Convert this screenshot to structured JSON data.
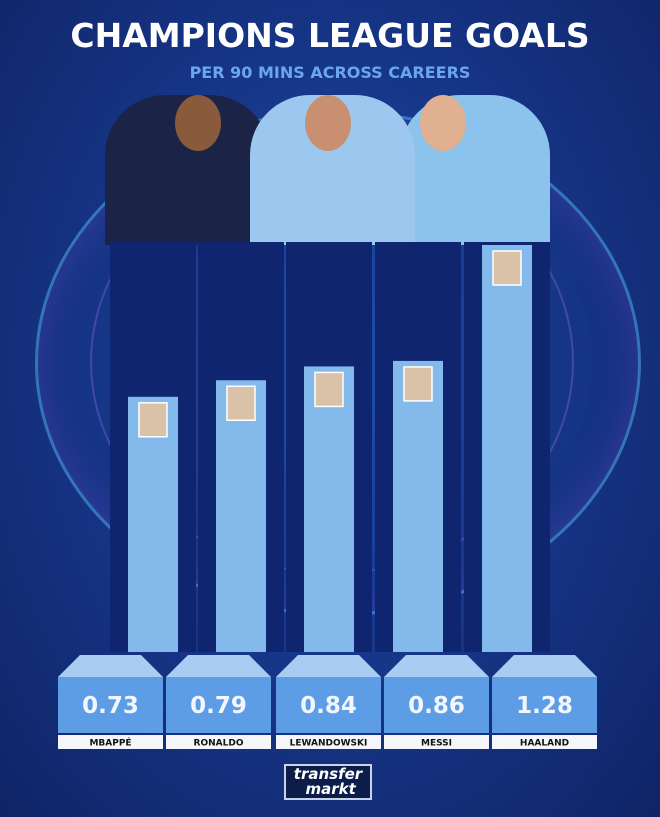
{
  "title": "CHAMPIONS LEAGUE GOALS",
  "subtitle": "PER 90 MINS ACROSS CAREERS",
  "logo_text": "transfer markt",
  "colors": {
    "bar": "#84b9ec",
    "box_front": "#5c9de6",
    "box_top": "#a9cdf2",
    "column": "#0f2570",
    "background": "#17378a"
  },
  "chart_data": {
    "type": "bar",
    "title": "CHAMPIONS LEAGUE GOALS",
    "subtitle": "PER 90 MINS ACROSS CAREERS",
    "categories": [
      "MBAPPÉ",
      "RONALDO",
      "LEWANDOWSKI",
      "MESSI",
      "HAALAND"
    ],
    "values": [
      0.73,
      0.79,
      0.84,
      0.86,
      1.28
    ],
    "value_labels": [
      "0.73",
      "0.79",
      "0.84",
      "0.86",
      "1.28"
    ],
    "grid": false,
    "legend": "none"
  }
}
